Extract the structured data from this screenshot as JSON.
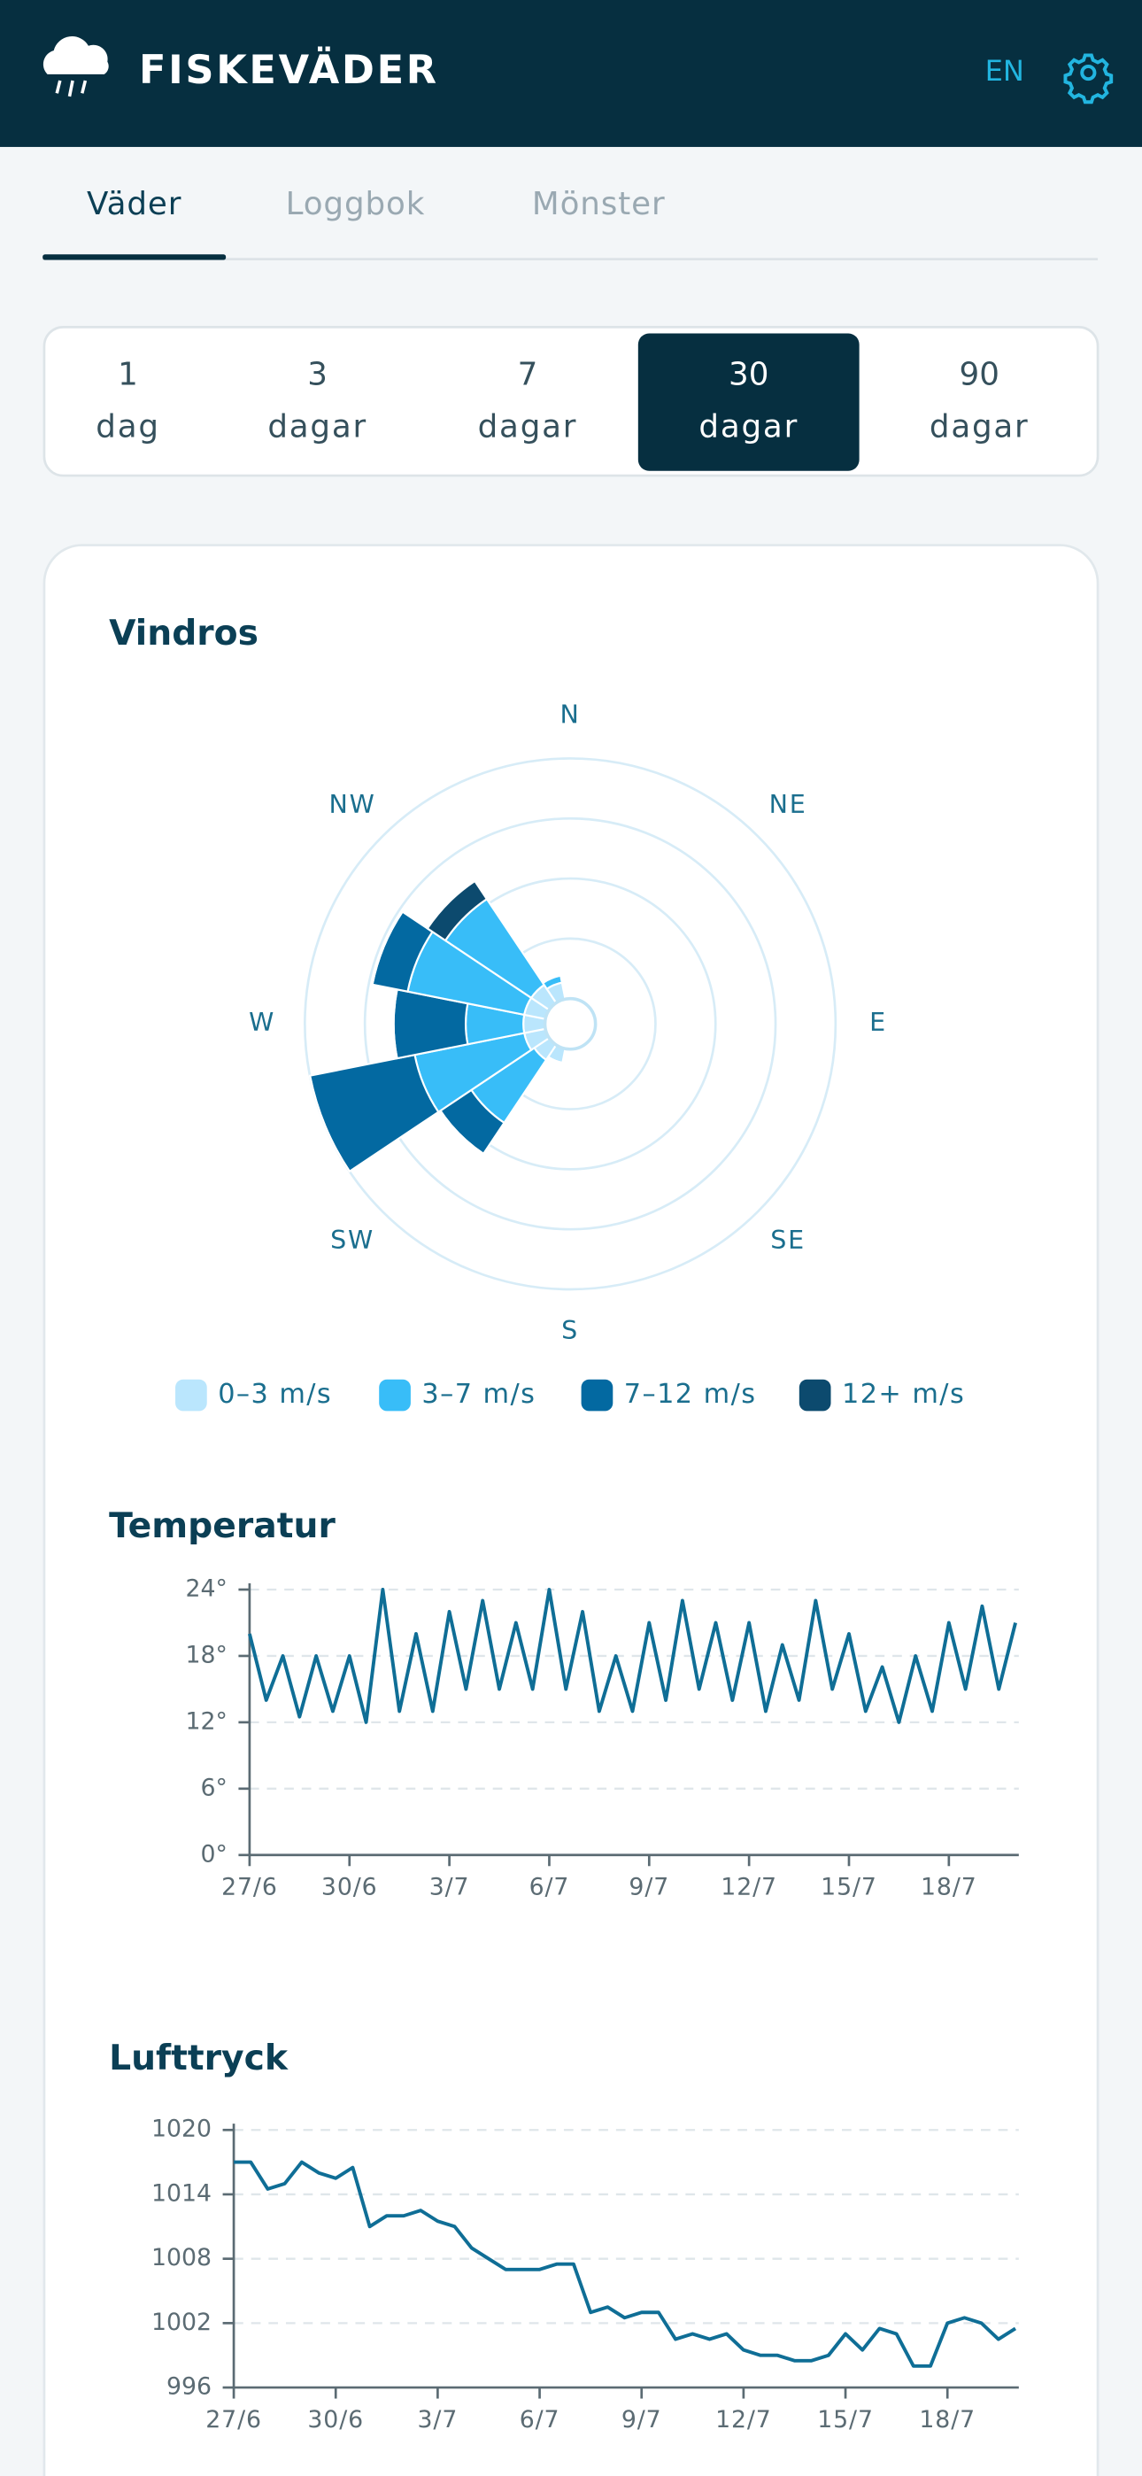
{
  "header": {
    "title": "FISKEVÄDER",
    "language": "EN"
  },
  "tabs": {
    "items": [
      "Väder",
      "Loggbok",
      "Mönster"
    ],
    "active": 0
  },
  "periods": {
    "options": [
      [
        "1",
        "dag"
      ],
      [
        "3",
        "dagar"
      ],
      [
        "7",
        "dagar"
      ],
      [
        "30",
        "dagar"
      ],
      [
        "90",
        "dagar"
      ]
    ],
    "selected": 3
  },
  "chart_data": [
    {
      "type": "windrose",
      "title": "Vindros",
      "categories": [
        "N",
        null,
        "NE",
        null,
        "E",
        null,
        "SE",
        null,
        "S",
        null,
        "SW",
        null,
        "W",
        null,
        "NW",
        null
      ],
      "rlim": [
        0,
        20
      ],
      "rticks": [
        5,
        10,
        15,
        20
      ],
      "grid": true,
      "series": [
        {
          "name": "0–3 m/s",
          "color": "#bae6fd",
          "values": [
            0,
            0,
            0,
            0,
            0,
            0,
            0,
            0,
            0,
            1.2,
            1.5,
            1.8,
            1.8,
            1.8,
            1.8,
            1.4
          ]
        },
        {
          "name": "3–7 m/s",
          "color": "#38bdf8",
          "values": [
            0,
            0,
            0,
            0,
            0,
            0,
            0,
            0,
            0,
            0,
            6.3,
            9.3,
            4.8,
            9.9,
            8.6,
            0.6
          ]
        },
        {
          "name": "7–12 m/s",
          "color": "#0369a1",
          "values": [
            0,
            0,
            0,
            0,
            0,
            0,
            0,
            0,
            0,
            0,
            3.1,
            8.9,
            6.0,
            3.0,
            0,
            0
          ]
        },
        {
          "name": "12+ m/s",
          "color": "#0c4a6e",
          "values": [
            0,
            0,
            0,
            0,
            0,
            0,
            0,
            0,
            0,
            0,
            0,
            0,
            0,
            0,
            1.8,
            0
          ]
        }
      ]
    },
    {
      "type": "line",
      "title": "Temperatur",
      "color": "#0f6e96",
      "grid": true,
      "xlim": [
        0,
        23.1
      ],
      "xticks": [
        {
          "value": 0,
          "label": "27/6"
        },
        {
          "value": 3,
          "label": "30/6"
        },
        {
          "value": 6,
          "label": "3/7"
        },
        {
          "value": 9,
          "label": "6/7"
        },
        {
          "value": 12,
          "label": "9/7"
        },
        {
          "value": 15,
          "label": "12/7"
        },
        {
          "value": 18,
          "label": "15/7"
        },
        {
          "value": 21,
          "label": "18/7"
        }
      ],
      "ylim": [
        0,
        24
      ],
      "yticks": [
        {
          "value": 0,
          "label": "0°"
        },
        {
          "value": 6,
          "label": "6°"
        },
        {
          "value": 12,
          "label": "12°"
        },
        {
          "value": 18,
          "label": "18°"
        },
        {
          "value": 24,
          "label": "24°"
        }
      ],
      "x": [
        0,
        0.5,
        1,
        1.5,
        2,
        2.5,
        3,
        3.5,
        4,
        4.5,
        5,
        5.5,
        6,
        6.5,
        7,
        7.5,
        8,
        8.5,
        9,
        9.5,
        10,
        10.5,
        11,
        11.5,
        12,
        12.5,
        13,
        13.5,
        14,
        14.5,
        15,
        15.5,
        16,
        16.5,
        17,
        17.5,
        18,
        18.5,
        19,
        19.5,
        20,
        20.5,
        21,
        21.5,
        22,
        22.5,
        23
      ],
      "values": [
        20,
        14,
        18,
        12.5,
        18,
        13,
        18,
        12,
        24,
        13,
        20,
        13,
        22,
        15,
        23,
        15,
        21,
        15,
        24,
        15,
        22,
        13,
        18,
        13,
        21,
        14,
        23,
        15,
        21,
        14,
        21,
        13,
        19,
        14,
        23,
        15,
        20,
        13,
        17,
        12,
        18,
        13,
        21,
        15,
        22.5,
        15,
        21
      ]
    },
    {
      "type": "line",
      "title": "Lufttryck",
      "color": "#0f6e96",
      "grid": true,
      "xlim": [
        0,
        23.1
      ],
      "xticks": [
        {
          "value": 0,
          "label": "27/6"
        },
        {
          "value": 3,
          "label": "30/6"
        },
        {
          "value": 6,
          "label": "3/7"
        },
        {
          "value": 9,
          "label": "6/7"
        },
        {
          "value": 12,
          "label": "9/7"
        },
        {
          "value": 15,
          "label": "12/7"
        },
        {
          "value": 18,
          "label": "15/7"
        },
        {
          "value": 21,
          "label": "18/7"
        }
      ],
      "ylim": [
        996,
        1020
      ],
      "yticks": [
        996,
        1002,
        1008,
        1014,
        1020
      ],
      "x": [
        0,
        0.5,
        1,
        1.5,
        2,
        2.5,
        3,
        3.5,
        4,
        4.5,
        5,
        5.5,
        6,
        6.5,
        7,
        7.5,
        8,
        8.5,
        9,
        9.5,
        10,
        10.5,
        11,
        11.5,
        12,
        12.5,
        13,
        13.5,
        14,
        14.5,
        15,
        15.5,
        16,
        16.5,
        17,
        17.5,
        18,
        18.5,
        19,
        19.5,
        20,
        20.5,
        21,
        21.5,
        22,
        22.5,
        23
      ],
      "values": [
        1017,
        1017,
        1014.5,
        1015,
        1017,
        1016,
        1015.5,
        1016.5,
        1011,
        1012,
        1012,
        1012.5,
        1011.5,
        1011,
        1009,
        1008,
        1007,
        1007,
        1007,
        1007.5,
        1007.5,
        1003,
        1003.5,
        1002.5,
        1003,
        1003,
        1000.5,
        1001,
        1000.5,
        1001,
        999.5,
        999,
        999,
        998.5,
        998.5,
        999,
        1001,
        999.5,
        1001.5,
        1001,
        998,
        998,
        1002,
        1002.5,
        1002,
        1000.5,
        1001.5
      ]
    }
  ]
}
